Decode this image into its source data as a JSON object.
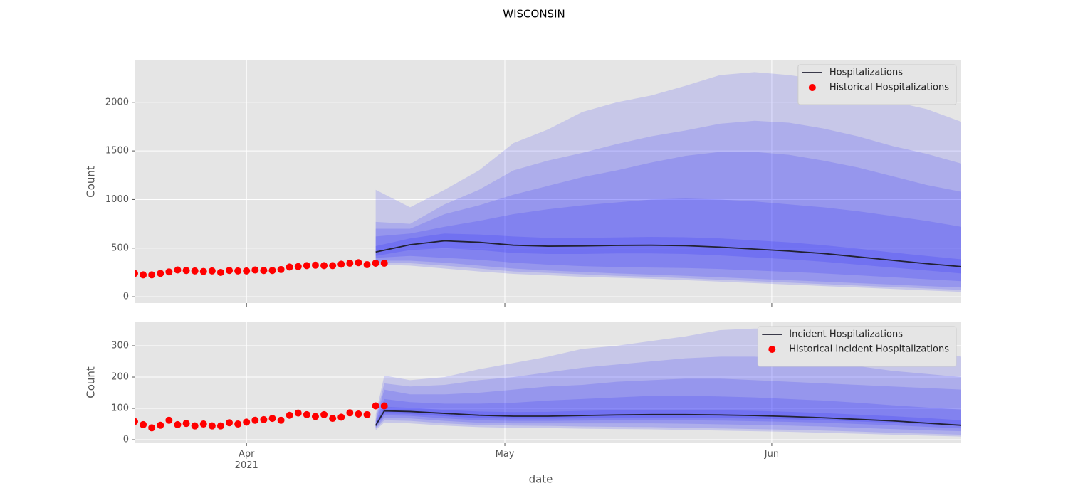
{
  "title": "WISCONSIN",
  "chart_data": [
    {
      "type": "line",
      "ylabel": "Count",
      "xlim": [
        18705,
        18801
      ],
      "xticks": [
        18718,
        18748,
        18779
      ],
      "ylim": [
        -65,
        2430
      ],
      "yticks": [
        0,
        500,
        1000,
        1500,
        2000
      ],
      "grid": true,
      "legend": "upper right",
      "band_color": "#0000ff",
      "bands_x": [
        18733,
        18737,
        18741,
        18745,
        18749,
        18753,
        18757,
        18761,
        18765,
        18769,
        18773,
        18777,
        18781,
        18785,
        18789,
        18793,
        18797,
        18801
      ],
      "bands": [
        {
          "upper": [
            1100,
            920,
            1100,
            1300,
            1580,
            1720,
            1900,
            2000,
            2070,
            2170,
            2280,
            2310,
            2280,
            2230,
            2130,
            2010,
            1930,
            1800
          ],
          "lower": [
            330,
            320,
            290,
            260,
            235,
            220,
            205,
            195,
            185,
            170,
            155,
            140,
            125,
            110,
            95,
            80,
            65,
            50
          ]
        },
        {
          "upper": [
            770,
            750,
            950,
            1100,
            1300,
            1400,
            1480,
            1570,
            1650,
            1710,
            1780,
            1810,
            1790,
            1730,
            1650,
            1550,
            1470,
            1370
          ],
          "lower": [
            350,
            345,
            320,
            290,
            260,
            245,
            230,
            215,
            205,
            190,
            175,
            160,
            145,
            130,
            115,
            100,
            85,
            70
          ]
        },
        {
          "upper": [
            700,
            700,
            850,
            940,
            1050,
            1140,
            1230,
            1300,
            1380,
            1450,
            1490,
            1490,
            1460,
            1400,
            1330,
            1240,
            1150,
            1080
          ],
          "lower": [
            370,
            370,
            350,
            320,
            290,
            270,
            255,
            240,
            228,
            215,
            200,
            185,
            170,
            155,
            140,
            125,
            110,
            95
          ]
        },
        {
          "upper": [
            620,
            650,
            720,
            780,
            850,
            900,
            940,
            970,
            1000,
            1010,
            1000,
            980,
            950,
            920,
            880,
            830,
            780,
            720
          ],
          "lower": [
            400,
            420,
            400,
            380,
            350,
            330,
            315,
            305,
            300,
            295,
            285,
            270,
            255,
            240,
            220,
            200,
            180,
            160
          ]
        },
        {
          "upper": [
            520,
            600,
            650,
            640,
            620,
            605,
            605,
            610,
            615,
            612,
            600,
            580,
            560,
            530,
            495,
            455,
            420,
            385
          ],
          "lower": [
            420,
            480,
            500,
            480,
            450,
            440,
            440,
            445,
            445,
            440,
            425,
            405,
            385,
            360,
            330,
            300,
            270,
            240
          ]
        }
      ],
      "series": [
        {
          "name": "Hospitalizations",
          "kind": "line",
          "color": "#222233",
          "x": [
            18733,
            18737,
            18741,
            18745,
            18749,
            18753,
            18757,
            18761,
            18765,
            18769,
            18773,
            18777,
            18781,
            18785,
            18789,
            18793,
            18797,
            18801
          ],
          "values": [
            460,
            535,
            575,
            560,
            530,
            520,
            522,
            528,
            530,
            525,
            510,
            490,
            470,
            445,
            410,
            375,
            340,
            310
          ]
        },
        {
          "name": "Historical Hospitalizations",
          "kind": "scatter",
          "color": "#ff0000",
          "x": [
            18705,
            18706,
            18707,
            18708,
            18709,
            18710,
            18711,
            18712,
            18713,
            18714,
            18715,
            18716,
            18717,
            18718,
            18719,
            18720,
            18721,
            18722,
            18723,
            18724,
            18725,
            18726,
            18727,
            18728,
            18729,
            18730,
            18731,
            18732,
            18733,
            18734
          ],
          "values": [
            240,
            225,
            225,
            240,
            255,
            275,
            270,
            265,
            260,
            265,
            250,
            270,
            265,
            265,
            275,
            270,
            270,
            280,
            305,
            310,
            320,
            325,
            320,
            320,
            335,
            345,
            350,
            330,
            345,
            345
          ]
        }
      ]
    },
    {
      "type": "line",
      "ylabel": "Count",
      "xlabel": "date",
      "xlim": [
        18705,
        18801
      ],
      "xticks": [
        {
          "value": 18718,
          "label": "Apr\n2021"
        },
        {
          "value": 18748,
          "label": "May"
        },
        {
          "value": 18779,
          "label": "Jun"
        }
      ],
      "ylim": [
        -9,
        375
      ],
      "yticks": [
        0,
        100,
        200,
        300
      ],
      "grid": true,
      "legend": "upper right",
      "band_color": "#0000ff",
      "bands_x": [
        18733,
        18734,
        18737,
        18741,
        18745,
        18749,
        18753,
        18757,
        18761,
        18765,
        18769,
        18773,
        18777,
        18781,
        18785,
        18789,
        18793,
        18797,
        18801
      ],
      "bands": [
        {
          "upper": [
            80,
            205,
            190,
            200,
            225,
            245,
            265,
            290,
            300,
            315,
            330,
            350,
            355,
            355,
            345,
            330,
            310,
            290,
            265
          ],
          "lower": [
            30,
            55,
            52,
            45,
            40,
            38,
            37,
            35,
            34,
            33,
            31,
            29,
            27,
            25,
            22,
            19,
            16,
            13,
            10
          ]
        },
        {
          "upper": [
            65,
            180,
            170,
            175,
            190,
            200,
            215,
            230,
            240,
            250,
            260,
            265,
            265,
            260,
            250,
            235,
            220,
            210,
            200
          ],
          "lower": [
            35,
            62,
            60,
            52,
            47,
            45,
            44,
            42,
            41,
            40,
            38,
            36,
            34,
            32,
            29,
            26,
            22,
            19,
            16
          ]
        },
        {
          "upper": [
            60,
            160,
            145,
            145,
            150,
            160,
            170,
            175,
            185,
            190,
            195,
            195,
            190,
            185,
            180,
            175,
            170,
            165,
            160
          ],
          "lower": [
            38,
            70,
            68,
            60,
            54,
            52,
            52,
            52,
            52,
            52,
            51,
            49,
            47,
            45,
            42,
            38,
            34,
            30,
            27
          ]
        },
        {
          "upper": [
            55,
            130,
            120,
            115,
            115,
            118,
            125,
            130,
            135,
            140,
            140,
            138,
            135,
            130,
            125,
            118,
            110,
            103,
            96
          ],
          "lower": [
            40,
            78,
            76,
            68,
            62,
            60,
            60,
            61,
            62,
            62,
            62,
            61,
            59,
            57,
            54,
            50,
            46,
            41,
            36
          ]
        },
        {
          "upper": [
            50,
            105,
            102,
            95,
            90,
            88,
            89,
            92,
            94,
            95,
            95,
            94,
            92,
            89,
            85,
            80,
            75,
            69,
            62
          ],
          "lower": [
            42,
            84,
            82,
            75,
            69,
            67,
            67,
            68,
            70,
            70,
            70,
            69,
            67,
            65,
            62,
            58,
            54,
            49,
            44
          ]
        }
      ],
      "series": [
        {
          "name": "Incident Hospitalizations",
          "kind": "line",
          "color": "#222233",
          "x": [
            18733,
            18734,
            18737,
            18741,
            18745,
            18749,
            18753,
            18757,
            18761,
            18765,
            18769,
            18773,
            18777,
            18781,
            18785,
            18789,
            18793,
            18797,
            18801
          ],
          "values": [
            45,
            92,
            90,
            84,
            78,
            75,
            75,
            77,
            79,
            80,
            80,
            79,
            77,
            74,
            70,
            65,
            60,
            53,
            46
          ]
        },
        {
          "name": "Historical Incident Hospitalizations",
          "kind": "scatter",
          "color": "#ff0000",
          "x": [
            18705,
            18706,
            18707,
            18708,
            18709,
            18710,
            18711,
            18712,
            18713,
            18714,
            18715,
            18716,
            18717,
            18718,
            18719,
            18720,
            18721,
            18722,
            18723,
            18724,
            18725,
            18726,
            18727,
            18728,
            18729,
            18730,
            18731,
            18732,
            18733,
            18734
          ],
          "values": [
            58,
            48,
            38,
            46,
            62,
            48,
            52,
            44,
            50,
            44,
            44,
            54,
            50,
            56,
            62,
            64,
            68,
            62,
            78,
            85,
            80,
            74,
            80,
            68,
            72,
            86,
            82,
            80,
            108,
            108
          ]
        }
      ]
    }
  ]
}
